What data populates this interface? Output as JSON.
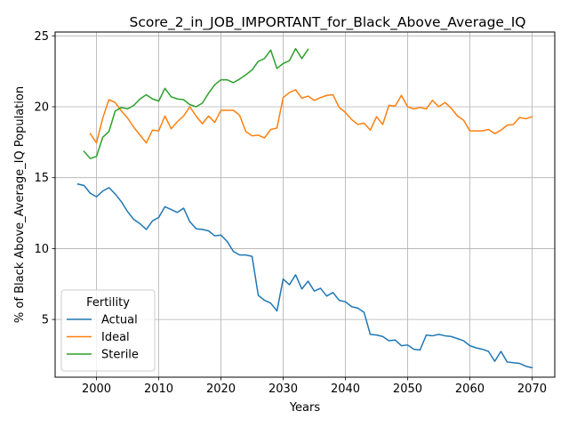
{
  "chart_data": {
    "type": "line",
    "title": "Score_2_in_JOB_IMPORTANT_for_Black_Above_Average_IQ",
    "xlabel": "Years",
    "ylabel": "% of Black Above_Average_IQ Population",
    "xlim": [
      1993.35,
      2073.65
    ],
    "ylim": [
      0.93,
      25.27
    ],
    "xticks": [
      2000,
      2010,
      2020,
      2030,
      2040,
      2050,
      2060,
      2070
    ],
    "yticks": [
      5,
      10,
      15,
      20,
      25
    ],
    "grid": true,
    "legend": {
      "title": "Fertility",
      "position": "lower-left"
    },
    "colors": {
      "Actual": "#1f77b4",
      "Ideal": "#ff7f0e",
      "Sterile": "#2ca02c"
    },
    "series": [
      {
        "name": "Actual",
        "x": [
          1997,
          1998,
          1999,
          2000,
          2001,
          2002,
          2003,
          2004,
          2005,
          2006,
          2007,
          2008,
          2009,
          2010,
          2011,
          2012,
          2013,
          2014,
          2015,
          2016,
          2017,
          2018,
          2019,
          2020,
          2021,
          2022,
          2023,
          2024,
          2025,
          2026,
          2027,
          2028,
          2029,
          2030,
          2031,
          2032,
          2033,
          2034,
          2035,
          2036,
          2037,
          2038,
          2039,
          2040,
          2041,
          2042,
          2043,
          2044,
          2045,
          2046,
          2047,
          2048,
          2049,
          2050,
          2051,
          2052,
          2053,
          2054,
          2055,
          2056,
          2057,
          2058,
          2059,
          2060,
          2061,
          2062,
          2063,
          2064,
          2065,
          2066,
          2067,
          2068,
          2069,
          2070
        ],
        "values": [
          14.55,
          14.45,
          13.9,
          13.65,
          14.05,
          14.3,
          13.85,
          13.3,
          12.6,
          12.05,
          11.75,
          11.35,
          11.95,
          12.2,
          12.95,
          12.75,
          12.55,
          12.85,
          11.9,
          11.4,
          11.35,
          11.25,
          10.9,
          10.95,
          10.5,
          9.8,
          9.55,
          9.55,
          9.45,
          6.7,
          6.35,
          6.15,
          5.6,
          7.85,
          7.45,
          8.15,
          7.15,
          7.7,
          7.0,
          7.2,
          6.65,
          6.9,
          6.35,
          6.25,
          5.9,
          5.8,
          5.5,
          3.95,
          3.9,
          3.8,
          3.5,
          3.55,
          3.15,
          3.2,
          2.9,
          2.85,
          3.9,
          3.85,
          3.95,
          3.85,
          3.8,
          3.65,
          3.5,
          3.15,
          3.0,
          2.9,
          2.75,
          2.05,
          2.75,
          2.0,
          1.95,
          1.9,
          1.7,
          1.6
        ]
      },
      {
        "name": "Ideal",
        "x": [
          1999,
          2000,
          2001,
          2002,
          2003,
          2004,
          2005,
          2006,
          2007,
          2008,
          2009,
          2010,
          2011,
          2012,
          2013,
          2014,
          2015,
          2016,
          2017,
          2018,
          2019,
          2020,
          2021,
          2022,
          2023,
          2024,
          2025,
          2026,
          2027,
          2028,
          2029,
          2030,
          2031,
          2032,
          2033,
          2034,
          2035,
          2036,
          2037,
          2038,
          2039,
          2040,
          2041,
          2042,
          2043,
          2044,
          2045,
          2046,
          2047,
          2048,
          2049,
          2050,
          2051,
          2052,
          2053,
          2054,
          2055,
          2056,
          2057,
          2058,
          2059,
          2060,
          2061,
          2062,
          2063,
          2064,
          2065,
          2066,
          2067,
          2068,
          2069,
          2070
        ],
        "values": [
          18.1,
          17.45,
          19.2,
          20.5,
          20.3,
          19.7,
          19.2,
          18.55,
          18.0,
          17.45,
          18.35,
          18.3,
          19.35,
          18.45,
          18.95,
          19.35,
          20.0,
          19.35,
          18.8,
          19.35,
          18.9,
          19.75,
          19.75,
          19.75,
          19.4,
          18.25,
          17.95,
          18.0,
          17.8,
          18.4,
          18.5,
          20.65,
          21.0,
          21.2,
          20.6,
          20.75,
          20.45,
          20.65,
          20.8,
          20.85,
          19.95,
          19.6,
          19.1,
          18.75,
          18.85,
          18.35,
          19.3,
          18.75,
          20.1,
          20.05,
          20.8,
          20.0,
          19.85,
          19.95,
          19.85,
          20.45,
          20.0,
          20.3,
          19.9,
          19.35,
          19.05,
          18.3,
          18.3,
          18.3,
          18.4,
          18.1,
          18.35,
          18.7,
          18.75,
          19.25,
          19.15,
          19.3
        ]
      },
      {
        "name": "Sterile",
        "x": [
          1998,
          1999,
          2000,
          2001,
          2002,
          2003,
          2004,
          2005,
          2006,
          2007,
          2008,
          2009,
          2010,
          2011,
          2012,
          2013,
          2014,
          2015,
          2016,
          2017,
          2018,
          2019,
          2020,
          2021,
          2022,
          2023,
          2024,
          2025,
          2026,
          2027,
          2028,
          2029,
          2030,
          2031,
          2032,
          2033,
          2034
        ],
        "values": [
          16.85,
          16.35,
          16.5,
          17.85,
          18.25,
          19.7,
          19.95,
          19.85,
          20.1,
          20.55,
          20.85,
          20.55,
          20.4,
          21.3,
          20.7,
          20.55,
          20.5,
          20.15,
          20.0,
          20.25,
          20.95,
          21.55,
          21.9,
          21.9,
          21.7,
          21.95,
          22.25,
          22.6,
          23.2,
          23.4,
          24.0,
          22.7,
          23.05,
          23.25,
          24.1,
          23.4,
          24.05
        ]
      }
    ]
  }
}
